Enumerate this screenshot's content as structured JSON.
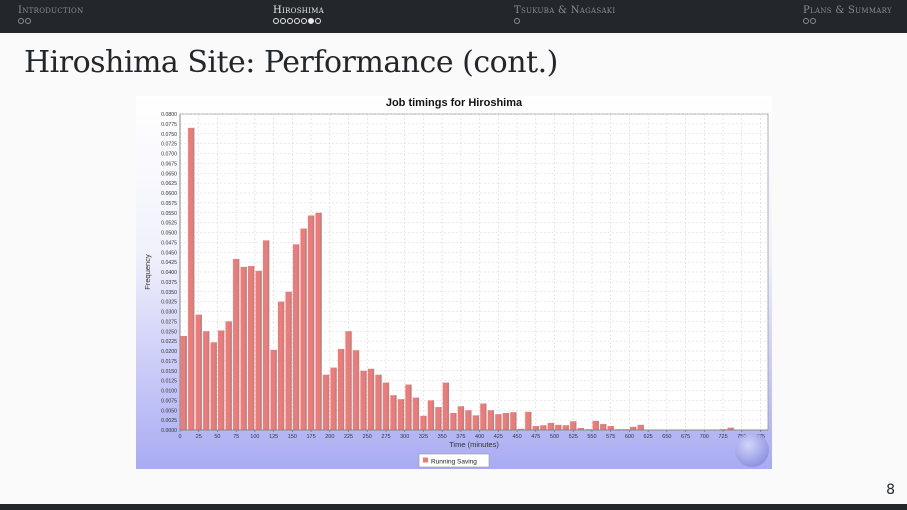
{
  "nav": {
    "sections": [
      {
        "label": "Introduction",
        "dots": 2,
        "active": false,
        "current": -1
      },
      {
        "label": "Hiroshima",
        "dots": 7,
        "active": true,
        "current": 5
      },
      {
        "label": "Tsukuba & Nagasaki",
        "dots": 1,
        "active": false,
        "current": -1
      },
      {
        "label": "Plans & Summary",
        "dots": 2,
        "active": false,
        "current": -1
      }
    ]
  },
  "slide": {
    "title": "Hiroshima Site: Performance (cont.)",
    "page": "8"
  },
  "chart_data": {
    "type": "bar",
    "title": "Job timings for Hiroshima",
    "xlabel": "Time (minutes)",
    "ylabel": "Frequency",
    "xlim": [
      0,
      785
    ],
    "ylim": [
      0,
      0.08
    ],
    "bin_width": 10,
    "x_ticks": [
      0,
      25,
      50,
      75,
      100,
      125,
      150,
      175,
      200,
      225,
      250,
      275,
      300,
      325,
      350,
      375,
      400,
      425,
      450,
      475,
      500,
      525,
      550,
      575,
      600,
      625,
      650,
      675,
      700,
      725,
      750,
      775
    ],
    "y_ticks": [
      "0.0000",
      "0.0025",
      "0.0050",
      "0.0075",
      "0.0100",
      "0.0125",
      "0.0150",
      "0.0175",
      "0.0200",
      "0.0225",
      "0.0250",
      "0.0275",
      "0.0300",
      "0.0325",
      "0.0350",
      "0.0375",
      "0.0400",
      "0.0425",
      "0.0450",
      "0.0475",
      "0.0500",
      "0.0525",
      "0.0550",
      "0.0575",
      "0.0600",
      "0.0625",
      "0.0650",
      "0.0675",
      "0.0700",
      "0.0725",
      "0.0750",
      "0.0775",
      "0.0800"
    ],
    "grid": true,
    "legend_position": "bottom-center",
    "series": [
      {
        "name": "Running Saving",
        "color": "#f07a78",
        "x": [
          5,
          15,
          25,
          35,
          45,
          55,
          65,
          75,
          85,
          95,
          105,
          115,
          125,
          135,
          145,
          155,
          165,
          175,
          185,
          195,
          205,
          215,
          225,
          235,
          245,
          255,
          265,
          275,
          285,
          295,
          305,
          315,
          325,
          335,
          345,
          355,
          365,
          375,
          385,
          395,
          405,
          415,
          425,
          435,
          445,
          455,
          465,
          475,
          485,
          495,
          505,
          515,
          525,
          535,
          545,
          555,
          565,
          575,
          585,
          595,
          605,
          615,
          625,
          635,
          645,
          655,
          665,
          675,
          685,
          695,
          705,
          715,
          725,
          735,
          745,
          755,
          765,
          775
        ],
        "values": [
          0.0238,
          0.0765,
          0.0292,
          0.025,
          0.0222,
          0.0252,
          0.0275,
          0.0433,
          0.0413,
          0.0415,
          0.0403,
          0.048,
          0.0203,
          0.0325,
          0.035,
          0.047,
          0.051,
          0.0543,
          0.055,
          0.014,
          0.0158,
          0.0205,
          0.025,
          0.0202,
          0.015,
          0.0155,
          0.014,
          0.012,
          0.0088,
          0.0078,
          0.0115,
          0.0082,
          0.0036,
          0.0075,
          0.0058,
          0.012,
          0.0043,
          0.006,
          0.005,
          0.0037,
          0.0067,
          0.005,
          0.004,
          0.0043,
          0.0045,
          0.0003,
          0.0046,
          0.001,
          0.0012,
          0.0018,
          0.0013,
          0.0012,
          0.0022,
          0.0005,
          0.0002,
          0.0023,
          0.0015,
          0.001,
          0.0002,
          0.0002,
          0.0008,
          0.0013,
          0.0,
          0.0,
          0.0,
          0.0,
          0.0,
          0.0,
          0.0,
          0.0,
          0.0,
          0.0,
          0.0002,
          0.0006,
          0.0,
          0.0,
          0.0,
          0.0
        ]
      }
    ]
  }
}
